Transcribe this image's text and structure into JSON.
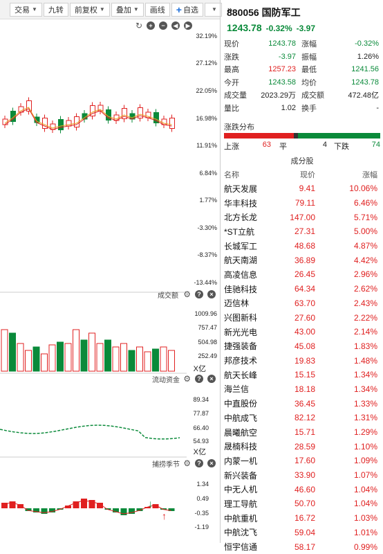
{
  "toolbar": {
    "trade": "交易",
    "nine": "九转",
    "adjust": "前复权",
    "overlay": "叠加",
    "draw": "画线",
    "add_watch": "自选",
    "more": "»"
  },
  "chart": {
    "price_ticks": [
      "32.19%",
      "27.12%",
      "22.05%",
      "16.98%",
      "11.91%",
      "6.84%",
      "1.77%",
      "-3.30%",
      "-8.37%",
      "-13.44%"
    ],
    "volume_title": "成交额",
    "volume_ticks": [
      "1009.96",
      "757.47",
      "504.98",
      "252.49"
    ],
    "volume_unit": "X亿",
    "flow_title": "流动资金",
    "flow_ticks": [
      "89.34",
      "77.87",
      "66.40",
      "54.93"
    ],
    "flow_unit": "X亿",
    "season_title": "捕捞季节",
    "season_ticks": [
      "1.34",
      "0.49",
      "-0.35",
      "-1.19"
    ],
    "colors": {
      "up": "#e02020",
      "down": "#0a8a3a",
      "ma1": "#e8a020",
      "ma2": "#e02020"
    }
  },
  "quote": {
    "code_name": "880056 国防军工",
    "price": "1243.78",
    "change_pct": "-0.32%",
    "change": "-3.97"
  },
  "stats": [
    {
      "k": "现价",
      "v": "1243.78",
      "vc": "green",
      "k2": "涨幅",
      "v2": "-0.32%",
      "v2c": "green"
    },
    {
      "k": "涨跌",
      "v": "-3.97",
      "vc": "green",
      "k2": "振幅",
      "v2": "1.26%",
      "v2c": ""
    },
    {
      "k": "最高",
      "v": "1257.23",
      "vc": "red",
      "k2": "最低",
      "v2": "1241.56",
      "v2c": "green"
    },
    {
      "k": "今开",
      "v": "1243.58",
      "vc": "green",
      "k2": "均价",
      "v2": "1243.78",
      "v2c": "green"
    },
    {
      "k": "成交量",
      "v": "2023.29万",
      "vc": "",
      "k2": "成交额",
      "v2": "472.48亿",
      "v2c": ""
    },
    {
      "k": "量比",
      "v": "1.02",
      "vc": "",
      "k2": "换手",
      "v2": "-",
      "v2c": ""
    }
  ],
  "distribution": {
    "title": "涨跌分布",
    "up_label": "上涨",
    "up": "63",
    "flat_label": "平",
    "flat": "4",
    "down_label": "下跌",
    "down": "74",
    "up_n": 63,
    "flat_n": 4,
    "down_n": 74
  },
  "constituents": {
    "title": "成分股",
    "col_name": "名称",
    "col_price": "现价",
    "col_pct": "涨幅",
    "rows": [
      {
        "name": "航天发展",
        "price": "9.41",
        "pct": "10.06%"
      },
      {
        "name": "华丰科技",
        "price": "79.11",
        "pct": "6.46%"
      },
      {
        "name": "北方长龙",
        "price": "147.00",
        "pct": "5.71%"
      },
      {
        "name": "*ST立航",
        "price": "27.31",
        "pct": "5.00%"
      },
      {
        "name": "长城军工",
        "price": "48.68",
        "pct": "4.87%"
      },
      {
        "name": "航天南湖",
        "price": "36.89",
        "pct": "4.42%"
      },
      {
        "name": "高凌信息",
        "price": "26.45",
        "pct": "2.96%"
      },
      {
        "name": "佳驰科技",
        "price": "64.34",
        "pct": "2.62%"
      },
      {
        "name": "迈信林",
        "price": "63.70",
        "pct": "2.43%"
      },
      {
        "name": "兴图新科",
        "price": "27.60",
        "pct": "2.22%"
      },
      {
        "name": "新光光电",
        "price": "43.00",
        "pct": "2.14%"
      },
      {
        "name": "捷强装备",
        "price": "45.08",
        "pct": "1.83%"
      },
      {
        "name": "邦彦技术",
        "price": "19.83",
        "pct": "1.48%"
      },
      {
        "name": "航天长峰",
        "price": "15.15",
        "pct": "1.34%"
      },
      {
        "name": "海兰信",
        "price": "18.18",
        "pct": "1.34%"
      },
      {
        "name": "中直股份",
        "price": "36.45",
        "pct": "1.33%"
      },
      {
        "name": "中航成飞",
        "price": "82.12",
        "pct": "1.31%"
      },
      {
        "name": "晨曦航空",
        "price": "15.71",
        "pct": "1.29%"
      },
      {
        "name": "晟楠科技",
        "price": "28.59",
        "pct": "1.10%"
      },
      {
        "name": "内蒙一机",
        "price": "17.60",
        "pct": "1.09%"
      },
      {
        "name": "新兴装备",
        "price": "33.90",
        "pct": "1.07%"
      },
      {
        "name": "中无人机",
        "price": "46.60",
        "pct": "1.04%"
      },
      {
        "name": "理工导航",
        "price": "50.70",
        "pct": "1.04%"
      },
      {
        "name": "中航重机",
        "price": "16.72",
        "pct": "1.03%"
      },
      {
        "name": "中航沈飞",
        "price": "59.04",
        "pct": "1.01%"
      },
      {
        "name": "恒宇信通",
        "price": "58.17",
        "pct": "0.99%"
      }
    ]
  }
}
